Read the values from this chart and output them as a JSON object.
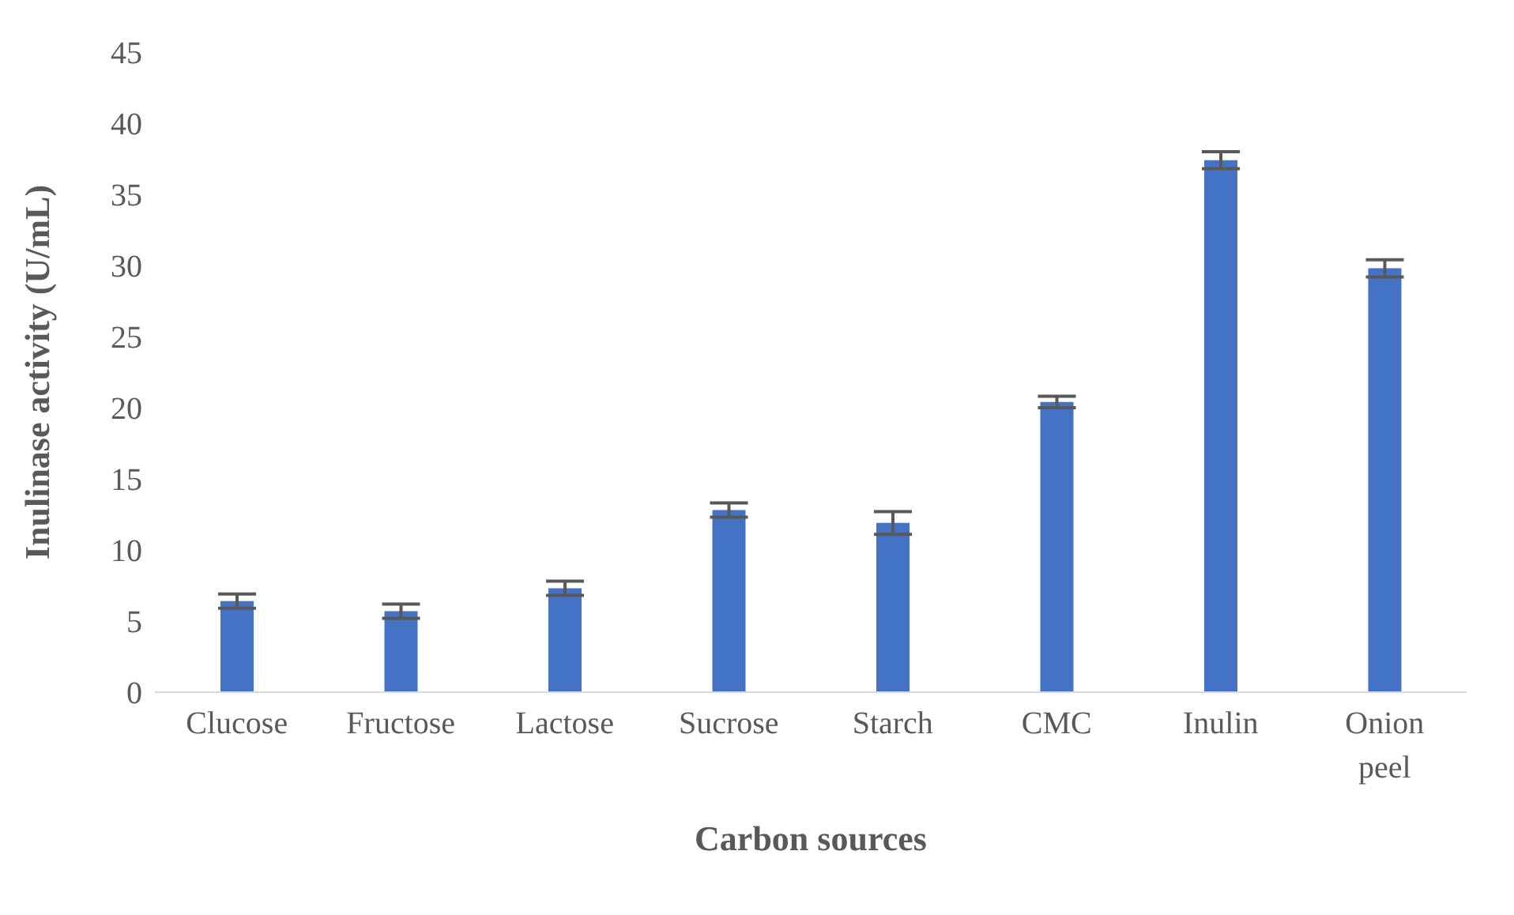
{
  "chart_data": {
    "type": "bar",
    "xlabel": "Carbon sources",
    "ylabel": "Inulinase activity (U/mL)",
    "categories": [
      "Clucose",
      "Fructose",
      "Lactose",
      "Sucrose",
      "Starch",
      "CMC",
      "Inulin",
      "Onion peel"
    ],
    "values": [
      6.4,
      5.7,
      7.3,
      12.8,
      11.9,
      20.4,
      37.4,
      29.8
    ],
    "errors": [
      0.5,
      0.5,
      0.5,
      0.5,
      0.8,
      0.4,
      0.6,
      0.6
    ],
    "color": "#4472c4",
    "ylim": [
      0,
      45
    ],
    "yticks": [
      0,
      5,
      10,
      15,
      20,
      25,
      30,
      35,
      40,
      45
    ],
    "grid": false
  }
}
